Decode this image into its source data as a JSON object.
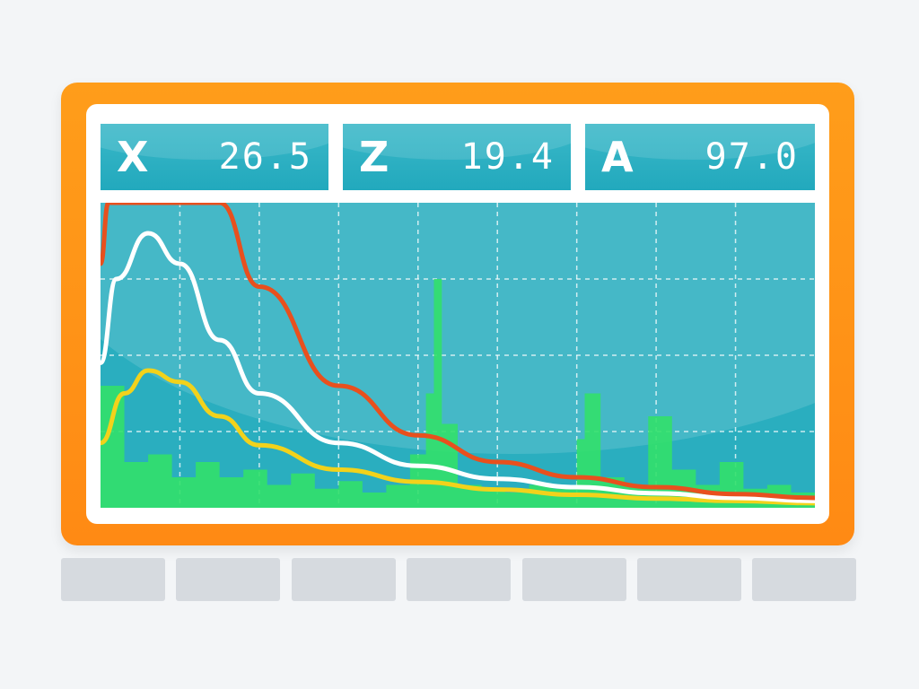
{
  "readouts": [
    {
      "label": "X",
      "value": "26.5"
    },
    {
      "label": "Z",
      "value": "19.4"
    },
    {
      "label": "A",
      "value": "97.0"
    }
  ],
  "colors": {
    "frame": "#ff8f16",
    "screen": "#2aaebf",
    "curve_red": "#e8501e",
    "curve_white": "#ffffff",
    "curve_yellow": "#f2d21b",
    "spectrum_green": "#32e06a",
    "grid": "#ffffff"
  },
  "chart_data": {
    "type": "line",
    "grid": true,
    "xlim": [
      0,
      9
    ],
    "ylim": [
      0,
      4
    ],
    "series": [
      {
        "color": "curve_red",
        "x": [
          0.0,
          0.1,
          1.5,
          2.0,
          3.0,
          4.0,
          5.0,
          6.0,
          7.0,
          8.0,
          9.0
        ],
        "y": [
          3.2,
          4.0,
          4.0,
          2.9,
          1.6,
          0.95,
          0.6,
          0.4,
          0.27,
          0.18,
          0.13
        ]
      },
      {
        "color": "curve_white",
        "x": [
          0.0,
          0.2,
          0.6,
          1.0,
          1.5,
          2.0,
          3.0,
          4.0,
          5.0,
          6.0,
          7.0,
          8.0,
          9.0
        ],
        "y": [
          1.9,
          3.0,
          3.6,
          3.2,
          2.2,
          1.5,
          0.85,
          0.55,
          0.38,
          0.27,
          0.19,
          0.13,
          0.09
        ]
      },
      {
        "color": "curve_yellow",
        "x": [
          0.0,
          0.3,
          0.6,
          1.0,
          1.5,
          2.0,
          3.0,
          4.0,
          5.0,
          6.0,
          7.0,
          8.0,
          9.0
        ],
        "y": [
          0.85,
          1.5,
          1.8,
          1.65,
          1.2,
          0.82,
          0.5,
          0.34,
          0.24,
          0.17,
          0.12,
          0.09,
          0.06
        ]
      },
      {
        "color": "spectrum_green",
        "x": [
          0.0,
          0.3,
          0.6,
          0.9,
          1.2,
          1.5,
          1.8,
          2.1,
          2.4,
          2.7,
          3.0,
          3.3,
          3.6,
          3.9,
          4.1,
          4.2,
          4.3,
          4.5,
          4.8,
          5.1,
          5.4,
          5.7,
          6.0,
          6.1,
          6.3,
          6.6,
          6.9,
          7.2,
          7.5,
          7.8,
          8.1,
          8.4,
          8.7,
          9.0
        ],
        "y": [
          1.6,
          0.6,
          0.7,
          0.4,
          0.6,
          0.4,
          0.5,
          0.3,
          0.45,
          0.25,
          0.35,
          0.2,
          0.3,
          0.7,
          1.5,
          3.0,
          1.1,
          0.3,
          0.25,
          0.2,
          0.3,
          0.25,
          0.9,
          1.5,
          0.4,
          0.3,
          1.2,
          0.5,
          0.3,
          0.6,
          0.25,
          0.3,
          0.2,
          0.2
        ]
      }
    ]
  },
  "buttons": [
    "",
    "",
    "",
    "",
    "",
    "",
    ""
  ]
}
